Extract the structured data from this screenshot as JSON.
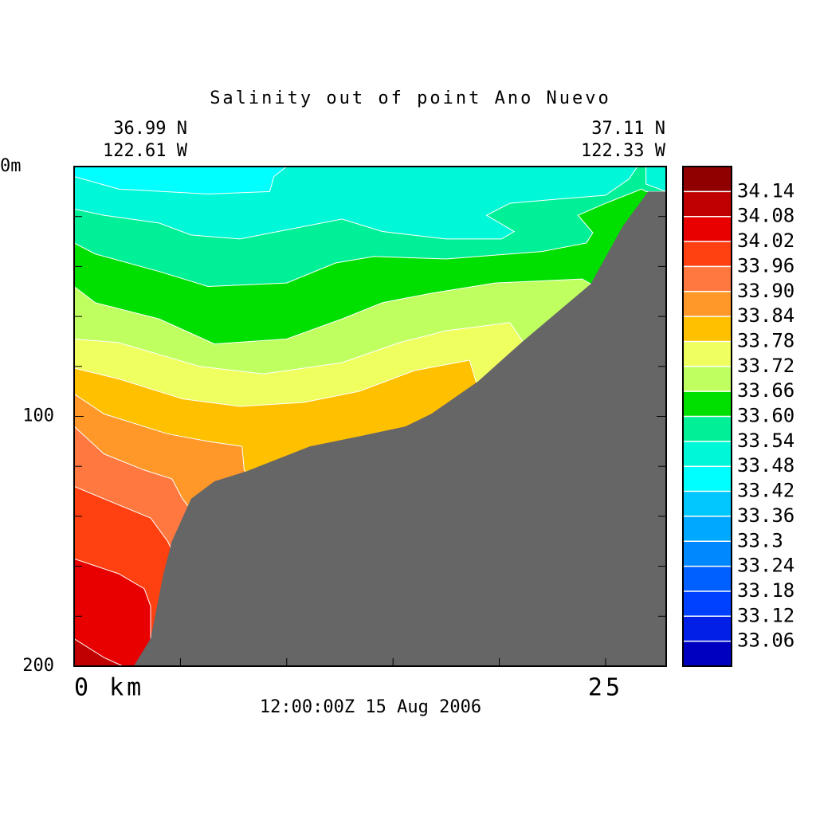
{
  "chart_data": {
    "type": "contour",
    "title": "Salinity out of point Ano Nuevo",
    "subtitle": "12:00:00Z  15 Aug 2006",
    "corner_labels": {
      "left": [
        "36.99 N",
        "122.61 W"
      ],
      "right": [
        "37.11 N",
        "122.33 W"
      ]
    },
    "xlim": [
      0,
      27.85
    ],
    "ylim": [
      0,
      200
    ],
    "xticks": [
      {
        "value": 0,
        "label": "0 km"
      },
      25
    ],
    "xminor": [
      5,
      10,
      15,
      20
    ],
    "yticks": [
      {
        "value": 0,
        "label": "0m"
      },
      100,
      200
    ],
    "yminor": [
      20,
      40,
      60,
      80,
      120,
      140,
      160,
      180
    ],
    "levels": [
      33.06,
      33.12,
      33.18,
      33.24,
      33.3,
      33.36,
      33.42,
      33.48,
      33.54,
      {
        "value": 33.6,
        "label": "33.60"
      },
      33.66,
      33.72,
      33.78,
      33.84,
      {
        "value": 33.9,
        "label": "33.90"
      },
      33.96,
      34.02,
      34.08,
      34.14
    ],
    "colors": [
      "#0000c0",
      "#0020e8",
      "#0040ff",
      "#0060ff",
      "#0088ff",
      "#00a8ff",
      "#00c8ff",
      "#00ffff",
      "#00f8d8",
      "#00f098",
      "#00e000",
      "#c0ff60",
      "#f0ff60",
      "#ffc000",
      "#ff9828",
      "#ff7840",
      "#ff4010",
      "#e80000",
      "#c00000",
      "#900000"
    ],
    "background_level": 33.48,
    "regions": [
      {
        "level": 33.42,
        "x": [
          0,
          10,
          9.4,
          9.2,
          6.3,
          2.1,
          0
        ],
        "y": [
          0,
          0,
          4,
          10,
          11,
          9,
          4
        ]
      },
      {
        "level": 33.54,
        "x": [
          0,
          1.4,
          4,
          5.5,
          7.8,
          10.8,
          12.6,
          14.5,
          17.5,
          20.1,
          20.7,
          19.4,
          20.5,
          22.8,
          25,
          26.1,
          26.5,
          26.9,
          26.9,
          27.85,
          27.85,
          0
        ],
        "y": [
          17,
          19.5,
          22.6,
          27.4,
          29,
          24,
          21,
          26,
          29,
          29,
          26,
          19.5,
          14.7,
          13,
          11.5,
          5,
          0,
          0,
          7,
          10,
          200,
          200
        ]
      },
      {
        "level": 33.6,
        "x": [
          0,
          1,
          4,
          6.3,
          10,
          12.3,
          14.1,
          17.5,
          22,
          24.1,
          24.4,
          23.7,
          25,
          26.7,
          26.9,
          27.85,
          27.85,
          0
        ],
        "y": [
          30.6,
          35,
          42,
          48,
          46.6,
          38.6,
          36,
          37,
          34,
          30.6,
          26.5,
          19.5,
          14.7,
          9,
          10,
          10,
          200,
          200
        ]
      },
      {
        "level": 33.66,
        "x": [
          0,
          1,
          4,
          6.6,
          10,
          12.6,
          14.5,
          16.8,
          19.8,
          23.9,
          24.3,
          27.85,
          27.85,
          0
        ],
        "y": [
          48,
          54.5,
          61,
          71,
          69,
          61,
          54.5,
          50.7,
          46.6,
          45,
          47,
          60,
          200,
          200
        ]
      },
      {
        "level": 33.72,
        "x": [
          0,
          2.1,
          5.9,
          8.9,
          12.6,
          15.3,
          17.5,
          20.5,
          21.1,
          22,
          27.85,
          27.85,
          0
        ],
        "y": [
          69,
          70.5,
          80,
          83,
          78.5,
          70.5,
          65.7,
          62.5,
          70,
          74,
          100,
          200,
          200
        ]
      },
      {
        "level": 33.78,
        "x": [
          0,
          2.1,
          5.1,
          7.8,
          10.8,
          13.4,
          16,
          18.6,
          18.9,
          19.4,
          27.85,
          27.85,
          0
        ],
        "y": [
          80.7,
          85,
          93,
          96,
          94.4,
          90,
          81.7,
          77.5,
          86,
          90,
          120,
          200,
          200
        ]
      },
      {
        "level": 33.84,
        "x": [
          0,
          1.4,
          4.4,
          6.3,
          7.9,
          8,
          8.5,
          27.85,
          27.85,
          0
        ],
        "y": [
          91,
          99,
          107,
          110,
          112,
          121.5,
          125,
          150,
          200,
          200
        ]
      },
      {
        "level": 33.9,
        "x": [
          0,
          1.4,
          3.3,
          4.6,
          5.1,
          5.5,
          27.85,
          27.85,
          0
        ],
        "y": [
          104,
          115,
          121.5,
          125,
          133,
          137.5,
          180,
          200,
          200
        ]
      },
      {
        "level": 33.96,
        "x": [
          0,
          1.4,
          3.6,
          4.4,
          4.8,
          27.85,
          0
        ],
        "y": [
          128,
          133,
          140.7,
          150,
          157,
          200,
          200
        ]
      },
      {
        "level": 34.02,
        "x": [
          0,
          2.1,
          3.3,
          3.6,
          3.6,
          3.7,
          0
        ],
        "y": [
          157,
          163,
          169,
          176,
          189,
          200,
          200
        ]
      },
      {
        "level": 34.08,
        "x": [
          0,
          1.4,
          2.3,
          0
        ],
        "y": [
          189,
          196.5,
          200,
          200
        ]
      }
    ],
    "land": {
      "color": "#666666",
      "x": [
        2.8,
        3.6,
        4.2,
        4.6,
        5.5,
        6.6,
        8.1,
        11.1,
        13.4,
        15.6,
        16.8,
        19,
        21.1,
        24.3,
        25.8,
        27,
        27.85,
        27.85
      ],
      "y": [
        200,
        189,
        163,
        150,
        133,
        126,
        122,
        112,
        108,
        104,
        99,
        86,
        70,
        47,
        24,
        10,
        10,
        200
      ]
    }
  }
}
